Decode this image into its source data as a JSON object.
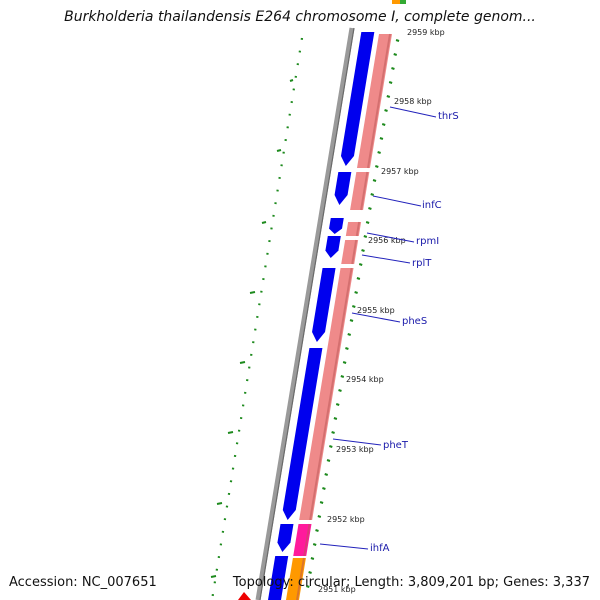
{
  "title": "Burkholderia thailandensis E264 chromosome I, complete genom...",
  "footer": {
    "accession": "Accession: NC_007651",
    "stats": "Topology: circular; Length: 3,809,201 bp; Genes: 3,337"
  },
  "kbp_labels": [
    "2959 kbp",
    "2958 kbp",
    "2957 kbp",
    "2956 kbp",
    "2955 kbp",
    "2954 kbp",
    "2953 kbp",
    "2952 kbp",
    "2951 kbp"
  ],
  "gene_labels": [
    "thrS",
    "infC",
    "rpmI",
    "rplT",
    "pheS",
    "pheT",
    "ihfA"
  ],
  "colors": {
    "backbone": "#8a8a8a",
    "cds": "#0000ee",
    "rna": "#ef8a8a",
    "ihf": "#ff1a9c",
    "orange": "#ff9900",
    "tick": "#1d8a1d",
    "leader": "#2222bb"
  }
}
